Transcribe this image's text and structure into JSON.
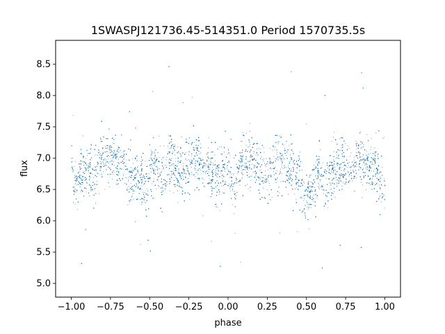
{
  "chart_data": {
    "type": "scatter",
    "title": "1SWASPJ121736.45-514351.0 Period 1570735.5s",
    "xlabel": "phase",
    "ylabel": "flux",
    "xlim": [
      -1.1,
      1.1
    ],
    "ylim": [
      4.78,
      8.88
    ],
    "xticks": [
      -1.0,
      -0.75,
      -0.5,
      -0.25,
      0.0,
      0.25,
      0.5,
      0.75,
      1.0
    ],
    "xtick_labels": [
      "−1.00",
      "−0.75",
      "−0.50",
      "−0.25",
      "0.00",
      "0.25",
      "0.50",
      "0.75",
      "1.00"
    ],
    "yticks": [
      5.0,
      5.5,
      6.0,
      6.5,
      7.0,
      7.5,
      8.0,
      8.5
    ],
    "ytick_labels": [
      "5.0",
      "5.5",
      "6.0",
      "6.5",
      "7.0",
      "7.5",
      "8.0",
      "8.5"
    ],
    "grid": false,
    "marker_color": "#1f77b4",
    "series": [
      {
        "phase_range": [
          -1.0,
          1.0
        ],
        "flux_median": 6.85,
        "flux_core_range": [
          6.2,
          7.5
        ],
        "flux_full_range": [
          5.0,
          8.7
        ],
        "low_flux_phases": [
          -0.97,
          -0.52,
          -0.42,
          0.04,
          0.49,
          0.54,
          0.62,
          0.99
        ],
        "high_flux_phases": [
          -0.8,
          -0.38,
          0.16,
          0.72,
          0.97
        ]
      }
    ]
  }
}
